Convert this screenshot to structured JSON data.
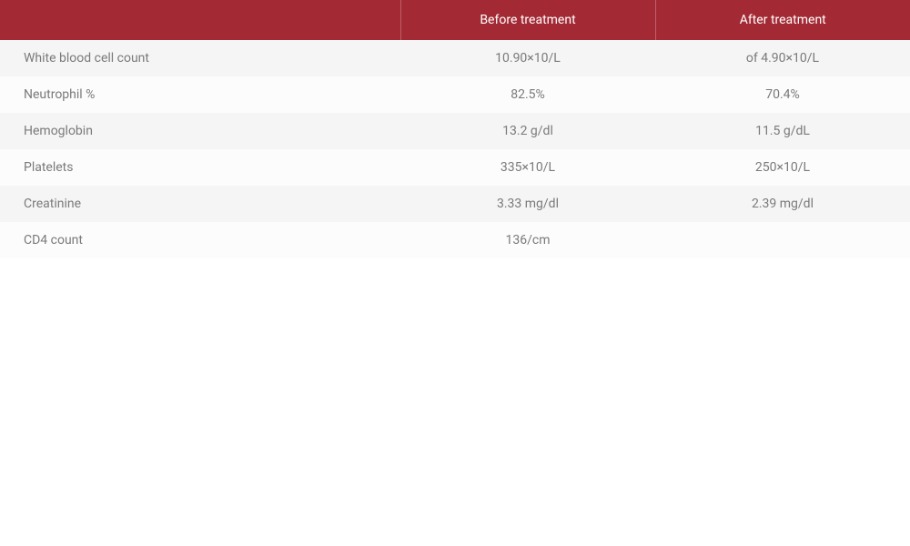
{
  "table": {
    "type": "table",
    "header_bg_color": "#a32a34",
    "header_text_color": "#ffffff",
    "row_bg_odd": "#f5f5f5",
    "row_bg_even": "#fcfcfc",
    "text_color": "#7a7a7a",
    "font_size": 14,
    "columns": [
      {
        "label": "",
        "align": "left",
        "width_pct": 44
      },
      {
        "label": "Before treatment",
        "align": "center",
        "width_pct": 28
      },
      {
        "label": "After treatment",
        "align": "center",
        "width_pct": 28
      }
    ],
    "rows": [
      {
        "label": "White blood cell count",
        "before": "10.90×10/L",
        "after": "of 4.90×10/L"
      },
      {
        "label": "Neutrophil %",
        "before": "82.5%",
        "after": "70.4%"
      },
      {
        "label": "Hemoglobin",
        "before": "13.2 g/dl",
        "after": "11.5 g/dL"
      },
      {
        "label": "Platelets",
        "before": "335×10/L",
        "after": "250×10/L"
      },
      {
        "label": "Creatinine",
        "before": "3.33 mg/dl",
        "after": "2.39 mg/dl"
      },
      {
        "label": "CD4 count",
        "before": "136/cm",
        "after": ""
      }
    ]
  }
}
